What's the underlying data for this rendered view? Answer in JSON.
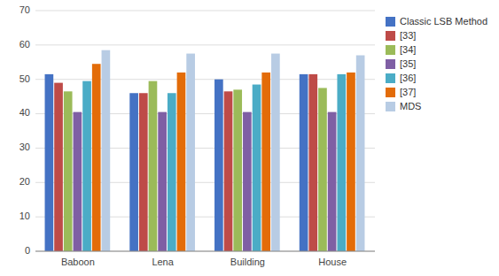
{
  "chart_data": {
    "type": "bar",
    "categories": [
      "Baboon",
      "Lena",
      "Building",
      "House"
    ],
    "series": [
      {
        "name": "Classic LSB Method",
        "color": "#4472C4",
        "values": [
          51.5,
          46.0,
          50.0,
          51.5
        ]
      },
      {
        "name": "[33]",
        "color": "#BE4B48",
        "values": [
          49.0,
          46.0,
          46.5,
          51.5
        ]
      },
      {
        "name": "[34]",
        "color": "#9BBB59",
        "values": [
          46.5,
          49.5,
          47.0,
          47.5
        ]
      },
      {
        "name": "[35]",
        "color": "#7F5FA4",
        "values": [
          40.5,
          40.5,
          40.5,
          40.5
        ]
      },
      {
        "name": "[36]",
        "color": "#4BACC6",
        "values": [
          49.5,
          46.0,
          48.5,
          51.5
        ]
      },
      {
        "name": "[37]",
        "color": "#E36C09",
        "values": [
          54.5,
          52.0,
          52.0,
          52.0
        ]
      },
      {
        "name": "MDS",
        "color": "#B8CCE4",
        "values": [
          58.5,
          57.5,
          57.5,
          57.0
        ]
      }
    ],
    "ylim": [
      0,
      70
    ],
    "yticks": [
      0,
      10,
      20,
      30,
      40,
      50,
      60,
      70
    ],
    "grid": true,
    "legend": "upper right"
  }
}
